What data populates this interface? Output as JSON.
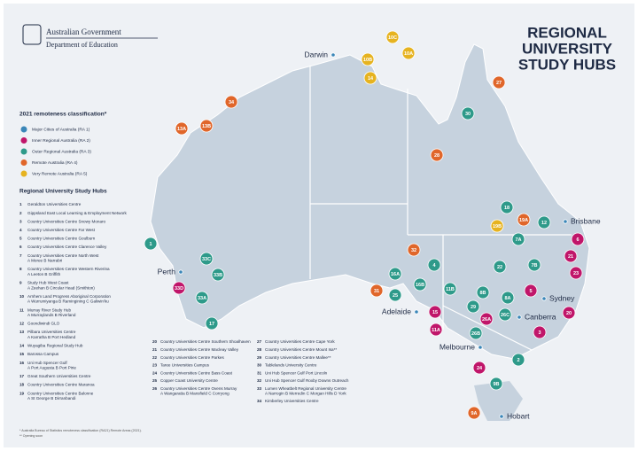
{
  "header": {
    "logo_line1": "Australian Government",
    "logo_line2": "Department of Education",
    "title": [
      "REGIONAL",
      "UNIVERSITY",
      "STUDY HUBS"
    ]
  },
  "legend": {
    "title": "2021 remoteness classification*",
    "items": [
      {
        "label": "Major Cities of Australia (RA 1)",
        "color": "#3a86b8"
      },
      {
        "label": "Inner Regional Australia (RA 2)",
        "color": "#c0166a"
      },
      {
        "label": "Outer Regional Australia (RA 3)",
        "color": "#2e9a8a"
      },
      {
        "label": "Remote Australia (RA 4)",
        "color": "#e0662a"
      },
      {
        "label": "Very Remote Australia (RA 5)",
        "color": "#e6b320"
      }
    ]
  },
  "hubs_title": "Regional University Study Hubs",
  "hubs": [
    {
      "number": 1,
      "name": "Geraldton Universities Centre"
    },
    {
      "number": 2,
      "name": "Gippsland East Local Learning & Employment Network"
    },
    {
      "number": 3,
      "name": "Country Universities Centre Snowy Monaro"
    },
    {
      "number": 4,
      "name": "Country Universities Centre Far West"
    },
    {
      "number": 5,
      "name": "Country Universities Centre Goulburn"
    },
    {
      "number": 6,
      "name": "Country Universities Centre Clarence Valley"
    },
    {
      "number": 7,
      "name": "Country Universities Centre North West",
      "sub": "A Moree B Narrabri"
    },
    {
      "number": 8,
      "name": "Country Universities Centre Western Riverina",
      "sub": "A Leeton B Griffith"
    },
    {
      "number": 9,
      "name": "Study Hub West Coast",
      "sub": "A Zeehan B Circular Head (Smithton)"
    },
    {
      "number": 10,
      "name": "Arnhem Land Progress Aboriginal Corporation",
      "sub": "A Wurrumiyanga B Ramingining C Galiwin'ku"
    },
    {
      "number": 11,
      "name": "Murray River Study Hub",
      "sub": "A Murraylands B Riverland"
    },
    {
      "number": 12,
      "name": "Goondiwindi GLO"
    },
    {
      "number": 13,
      "name": "Pilbara Universities Centre",
      "sub": "A Karratha B Port Hedland"
    },
    {
      "number": 14,
      "name": "Wuyagiba Regional Study Hub"
    },
    {
      "number": 15,
      "name": "Barossa Campus"
    },
    {
      "number": 16,
      "name": "Uni Hub Spencer Gulf",
      "sub": "A Port Augusta B Port Pirie"
    },
    {
      "number": 17,
      "name": "Great Southern Universities Centre"
    },
    {
      "number": 18,
      "name": "Country Universities Centre Maranoa"
    },
    {
      "number": 19,
      "name": "Country Universities Centre Balonne",
      "sub": "A St George B Dirranbandi"
    },
    {
      "number": 20,
      "name": "Country Universities Centre Southern Shoalhaven"
    },
    {
      "number": 21,
      "name": "Country Universities Centre Macleay Valley"
    },
    {
      "number": 22,
      "name": "Country Universities Centre Parkes"
    },
    {
      "number": 23,
      "name": "Taree Universities Campus"
    },
    {
      "number": 24,
      "name": "Country Universities Centre Bass Coast"
    },
    {
      "number": 25,
      "name": "Copper Coast University Centre"
    },
    {
      "number": 26,
      "name": "Country Universities Centre Ovens Murray",
      "sub": "A Wangaratta B Mansfield C Corryong"
    },
    {
      "number": 27,
      "name": "Country Universities Centre Cape York"
    },
    {
      "number": 28,
      "name": "Country Universities Centre Mount Isa**"
    },
    {
      "number": 29,
      "name": "Country Universities Centre Mallee**"
    },
    {
      "number": 30,
      "name": "Tablelands University Centre"
    },
    {
      "number": 31,
      "name": "Uni Hub Spencer Gulf Port Lincoln"
    },
    {
      "number": 32,
      "name": "Uni Hub Spencer Gulf Roxby Downs Outreach"
    },
    {
      "number": 33,
      "name": "Lumen Wheatbelt Regional University Centre",
      "sub": "A Narrogin B Merredin C Morgan Hills D York"
    },
    {
      "number": 34,
      "name": "Kimberley Universities Centre"
    }
  ],
  "footnotes": [
    "* Australia Bureau of Statistics remoteness classification (RA21) Remote Areas (2021).",
    "** Opening soon"
  ],
  "cities": [
    "Darwin",
    "Perth",
    "Adelaide",
    "Melbourne",
    "Sydney",
    "Canberra",
    "Brisbane",
    "Hobart"
  ],
  "markers": [
    {
      "label": "10C",
      "color": "#e6b320"
    },
    {
      "label": "10A",
      "color": "#e6b320"
    },
    {
      "label": "10B",
      "color": "#e6b320"
    },
    {
      "label": "14",
      "color": "#e6b320"
    },
    {
      "label": "27",
      "color": "#e0662a"
    },
    {
      "label": "34",
      "color": "#e0662a"
    },
    {
      "label": "30",
      "color": "#2e9a8a"
    },
    {
      "label": "13A",
      "color": "#e0662a"
    },
    {
      "label": "13B",
      "color": "#e0662a"
    },
    {
      "label": "28",
      "color": "#e0662a"
    },
    {
      "label": "18",
      "color": "#2e9a8a"
    },
    {
      "label": "19A",
      "color": "#e0662a"
    },
    {
      "label": "19B",
      "color": "#e6b320"
    },
    {
      "label": "12",
      "color": "#2e9a8a"
    },
    {
      "label": "7A",
      "color": "#2e9a8a"
    },
    {
      "label": "6",
      "color": "#c0166a"
    },
    {
      "label": "21",
      "color": "#c0166a"
    },
    {
      "label": "23",
      "color": "#c0166a"
    },
    {
      "label": "7B",
      "color": "#2e9a8a"
    },
    {
      "label": "1",
      "color": "#2e9a8a"
    },
    {
      "label": "32",
      "color": "#e0662a"
    },
    {
      "label": "33C",
      "color": "#2e9a8a"
    },
    {
      "label": "33B",
      "color": "#2e9a8a"
    },
    {
      "label": "33D",
      "color": "#c0166a"
    },
    {
      "label": "33A",
      "color": "#2e9a8a"
    },
    {
      "label": "17",
      "color": "#2e9a8a"
    },
    {
      "label": "4",
      "color": "#2e9a8a"
    },
    {
      "label": "22",
      "color": "#2e9a8a"
    },
    {
      "label": "16A",
      "color": "#2e9a8a"
    },
    {
      "label": "16B",
      "color": "#2e9a8a"
    },
    {
      "label": "11B",
      "color": "#2e9a8a"
    },
    {
      "label": "5",
      "color": "#c0166a"
    },
    {
      "label": "31",
      "color": "#e0662a"
    },
    {
      "label": "8B",
      "color": "#2e9a8a"
    },
    {
      "label": "8A",
      "color": "#2e9a8a"
    },
    {
      "label": "25",
      "color": "#2e9a8a"
    },
    {
      "label": "29",
      "color": "#2e9a8a"
    },
    {
      "label": "26A",
      "color": "#c0166a"
    },
    {
      "label": "26C",
      "color": "#2e9a8a"
    },
    {
      "label": "20",
      "color": "#c0166a"
    },
    {
      "label": "15",
      "color": "#c0166a"
    },
    {
      "label": "11A",
      "color": "#c0166a"
    },
    {
      "label": "26B",
      "color": "#2e9a8a"
    },
    {
      "label": "3",
      "color": "#c0166a"
    },
    {
      "label": "2",
      "color": "#2e9a8a"
    },
    {
      "label": "24",
      "color": "#c0166a"
    },
    {
      "label": "9B",
      "color": "#2e9a8a"
    },
    {
      "label": "9A",
      "color": "#e0662a"
    }
  ]
}
